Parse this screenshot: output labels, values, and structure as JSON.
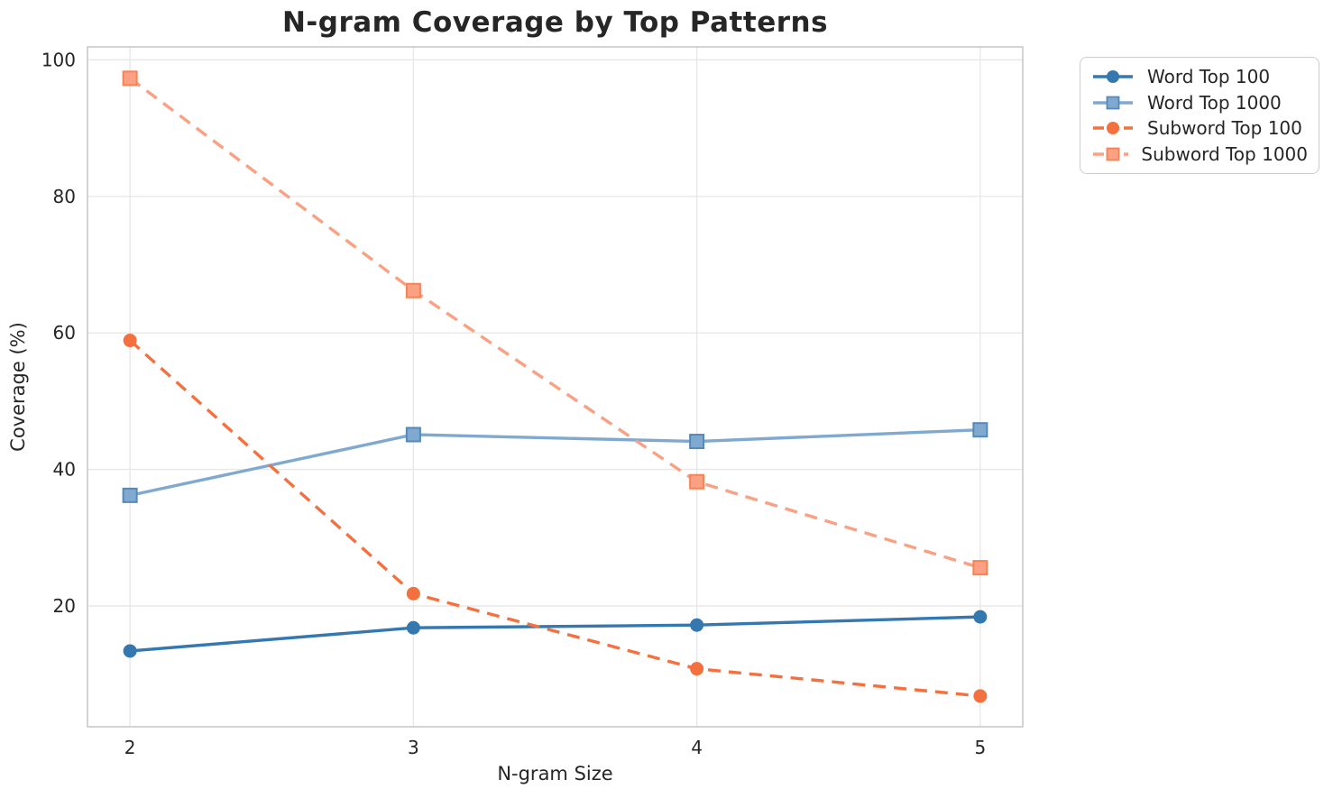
{
  "figure": {
    "background": "#ffffff",
    "text_color": "#262626",
    "grid_color": "#e8e8e8",
    "spine_color": "#c9c9c9"
  },
  "chart_data": {
    "type": "line",
    "title": "N-gram Coverage by Top Patterns",
    "xlabel": "N-gram Size",
    "ylabel": "Coverage (%)",
    "x": [
      2,
      3,
      4,
      5
    ],
    "xticks": [
      2,
      3,
      4,
      5
    ],
    "yticks": [
      20,
      40,
      60,
      80,
      100
    ],
    "xlim": [
      1.85,
      5.15
    ],
    "ylim": [
      2.3,
      101.9
    ],
    "grid": true,
    "legend_position": "outside-top-right",
    "series": [
      {
        "name": "Word Top 100",
        "values": [
          13.4,
          16.8,
          17.2,
          18.4
        ],
        "color": "#3478af",
        "marker_edge": "#3478af",
        "line_style": "solid",
        "marker": "circle"
      },
      {
        "name": "Word Top 1000",
        "values": [
          36.2,
          45.1,
          44.1,
          45.8
        ],
        "color": "#7fa9cf",
        "marker_edge": "#5589ba",
        "line_style": "solid",
        "marker": "square"
      },
      {
        "name": "Subword Top 100",
        "values": [
          58.9,
          21.8,
          10.8,
          6.8
        ],
        "color": "#f4713f",
        "marker_edge": "#f4713f",
        "line_style": "dashed",
        "marker": "circle"
      },
      {
        "name": "Subword Top 1000",
        "values": [
          97.3,
          66.2,
          38.2,
          25.6
        ],
        "color": "#faa083",
        "marker_edge": "#f68355",
        "line_style": "dashed",
        "marker": "square"
      }
    ]
  }
}
